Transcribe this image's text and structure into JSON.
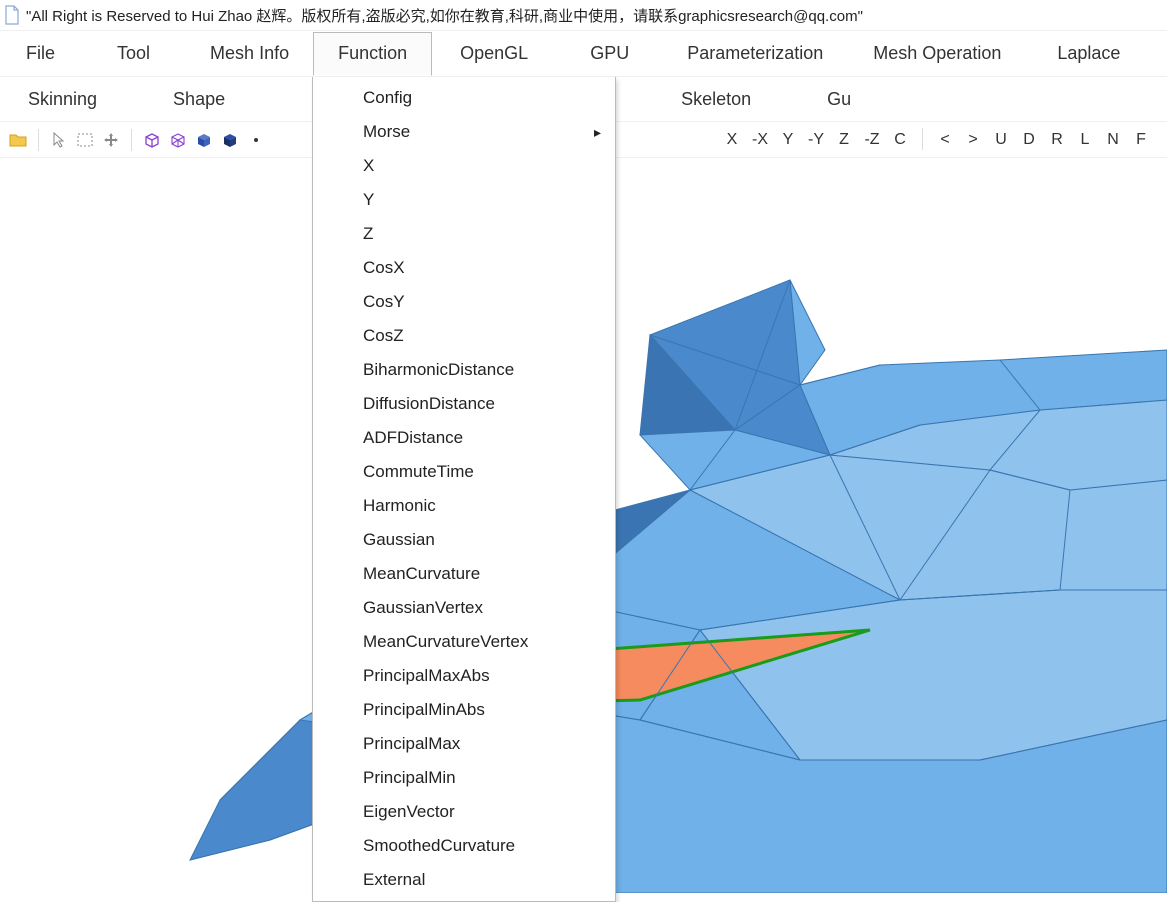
{
  "window": {
    "title": "\"All Right is Reserved to Hui Zhao 赵辉。版权所有,盗版必究,如你在教育,科研,商业中使用，请联系graphicsresearch@qq.com\""
  },
  "menubar": {
    "row1": [
      {
        "label": "File"
      },
      {
        "label": "Tool"
      },
      {
        "label": "Mesh Info"
      },
      {
        "label": "Function",
        "active": true
      },
      {
        "label": "OpenGL"
      },
      {
        "label": "GPU"
      },
      {
        "label": "Parameterization"
      },
      {
        "label": "Mesh Operation"
      },
      {
        "label": "Laplace"
      }
    ],
    "row2": [
      {
        "label": "Skinning"
      },
      {
        "label": "Shape"
      },
      {
        "label": "Skeleton"
      },
      {
        "label": "Gu"
      }
    ]
  },
  "dropdown": {
    "items": [
      {
        "label": "Config"
      },
      {
        "label": "Morse",
        "submenu": true
      },
      {
        "label": "X"
      },
      {
        "label": "Y"
      },
      {
        "label": "Z"
      },
      {
        "label": "CosX"
      },
      {
        "label": "CosY"
      },
      {
        "label": "CosZ"
      },
      {
        "label": "BiharmonicDistance"
      },
      {
        "label": "DiffusionDistance"
      },
      {
        "label": "ADFDistance"
      },
      {
        "label": "CommuteTime"
      },
      {
        "label": "Harmonic"
      },
      {
        "label": "Gaussian"
      },
      {
        "label": "MeanCurvature"
      },
      {
        "label": "GaussianVertex"
      },
      {
        "label": "MeanCurvatureVertex"
      },
      {
        "label": "PrincipalMaxAbs"
      },
      {
        "label": "PrincipalMinAbs"
      },
      {
        "label": "PrincipalMax"
      },
      {
        "label": "PrincipalMin"
      },
      {
        "label": "EigenVector"
      },
      {
        "label": "SmoothedCurvature"
      },
      {
        "label": "External"
      }
    ]
  },
  "toolbar": {
    "icons_left": [
      {
        "name": "open-folder-icon",
        "color1": "#f2c94c",
        "color2": "#d4a017"
      },
      {
        "name": "separator"
      },
      {
        "name": "cursor-icon",
        "color1": "#888"
      },
      {
        "name": "select-rect-icon",
        "color1": "#888"
      },
      {
        "name": "move-icon",
        "color1": "#888"
      },
      {
        "name": "separator"
      },
      {
        "name": "wireframe-cube-icon",
        "color1": "#8a3fd1"
      },
      {
        "name": "wireframe-cube2-icon",
        "color1": "#8a3fd1"
      },
      {
        "name": "solid-cube-icon",
        "color1": "#2b4ea8"
      },
      {
        "name": "solid-cube-dark-icon",
        "color1": "#1a2f66"
      },
      {
        "name": "vertex-dot-icon",
        "color1": "#333"
      }
    ],
    "letters_right": [
      "X",
      "-X",
      "Y",
      "-Y",
      "Z",
      "-Z",
      "C",
      "|",
      "<",
      ">",
      "U",
      "D",
      "R",
      "L",
      "N",
      "F"
    ]
  },
  "mesh": {
    "type": "3d-mesh-viewport",
    "background_color": "#ffffff",
    "shade_colors": {
      "light": "#8fc3ee",
      "base": "#6fb1e8",
      "dark": "#4a8acc",
      "darker": "#3b74b2",
      "edge": "#3a75b0"
    },
    "highlight_patch": {
      "fill": "#f58b5e",
      "stroke": "#1a9b1a",
      "stroke_width": 3
    }
  }
}
